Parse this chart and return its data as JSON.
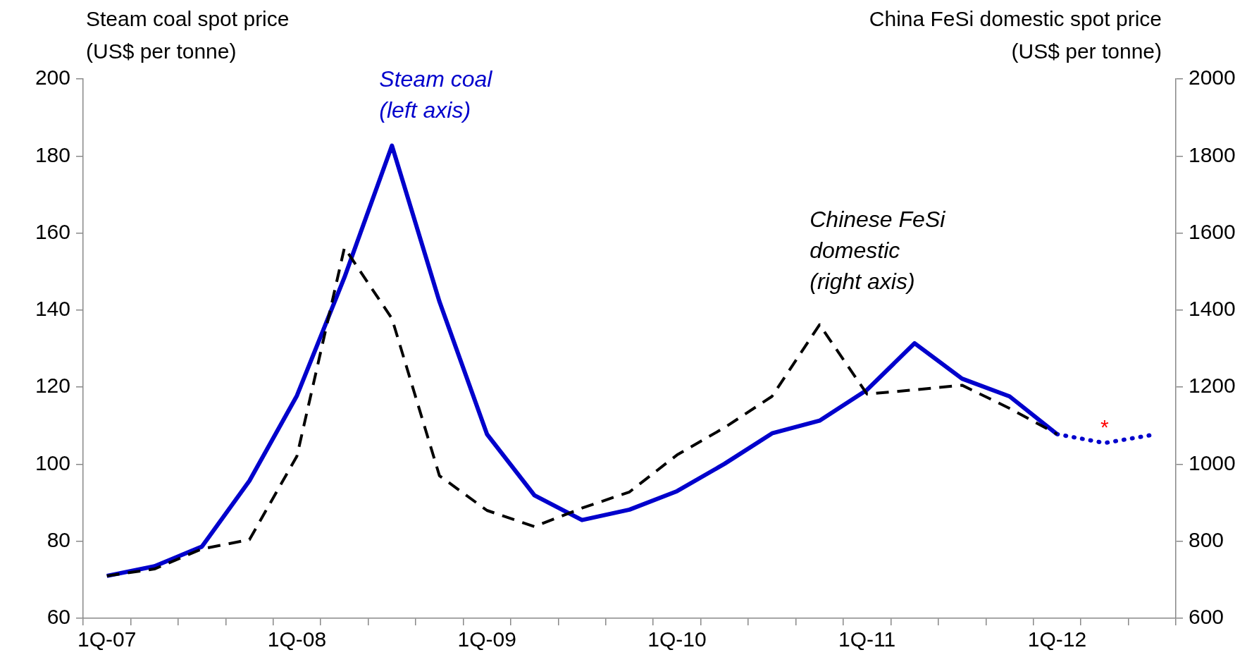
{
  "chart_data": {
    "type": "line",
    "ylabel": "Steam coal spot price\n(US$ per tonne)",
    "y2label": "China FeSi domestic spot price\n(US$ per tonne)",
    "categories": [
      "1Q-07",
      null,
      null,
      null,
      "1Q-08",
      null,
      null,
      null,
      "1Q-09",
      null,
      null,
      null,
      "1Q-10",
      null,
      null,
      null,
      "1Q-11",
      null,
      null,
      null,
      "1Q-12",
      null,
      null
    ],
    "series": [
      {
        "name": "Steam coal\n(left axis)",
        "color": "#0000cc",
        "line_style": "solid",
        "values": [
          71,
          73.5,
          78.6,
          95.7,
          117.8,
          148.5,
          182.7,
          142.2,
          107.8,
          91.9,
          85.5,
          88.2,
          93,
          100.1,
          108,
          111.3,
          119.3,
          131.4,
          122.2,
          117.6,
          107.8,
          null,
          null
        ]
      },
      {
        "color": "#0000cc",
        "line_style": "dotted",
        "values": [
          null,
          null,
          null,
          null,
          null,
          null,
          null,
          null,
          null,
          null,
          null,
          null,
          null,
          null,
          null,
          null,
          null,
          null,
          null,
          null,
          107.8,
          105.5,
          107.6
        ]
      },
      {
        "name": "Chinese FeSi\ndomestic\n(right axis)",
        "color": "#000000",
        "line_style": "dashed",
        "axis": "y2",
        "values": [
          710,
          728,
          780,
          804,
          1021,
          1562,
          1378,
          970,
          880,
          838,
          886,
          928,
          1024,
          1095,
          1176,
          1362,
          1182,
          1193,
          1205,
          1145,
          1078,
          null,
          null
        ]
      }
    ],
    "ylim": [
      60,
      200
    ],
    "yticks": [
      60,
      80,
      100,
      120,
      140,
      160,
      180,
      200
    ],
    "y2lim": [
      600,
      2000
    ],
    "y2ticks": [
      600,
      800,
      1000,
      1200,
      1400,
      1600,
      1800,
      2000
    ],
    "annotations": [
      "*"
    ],
    "grid": false,
    "legend": false,
    "marker": "none"
  }
}
